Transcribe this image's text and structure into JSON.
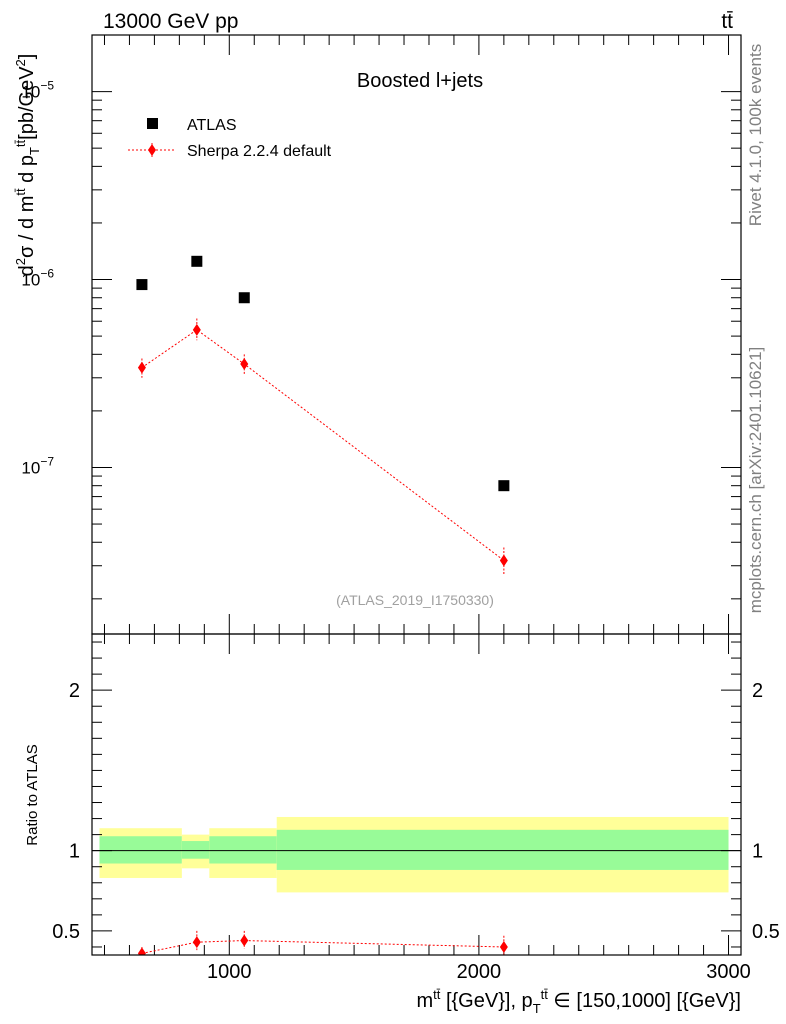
{
  "header": {
    "energy_label": "13000 GeV pp",
    "process_label": "tt̄"
  },
  "side_labels": {
    "rivet": "Rivet 4.1.0,  100k events",
    "source": "mcplots.cern.ch [arXiv:2401.10621]"
  },
  "chart_data": [
    {
      "panel": "main",
      "type": "scatter",
      "title": "Boosted l+jets",
      "analysis_label": "(ATLAS_2019_I1750330)",
      "ylabel": "d²σ / d mᵗᵗ̄ d p_Tᵗᵗ̄ [pb/GeV²]",
      "yscale": "log",
      "xlim": [
        450,
        3050
      ],
      "ylim": [
        1.3e-08,
        2e-05
      ],
      "y_tick_labels": [
        {
          "value": 1e-07,
          "base": "10",
          "exp": "−7"
        },
        {
          "value": 1e-06,
          "base": "10",
          "exp": "−6"
        },
        {
          "value": 1e-05,
          "base": "10",
          "exp": "−5"
        }
      ],
      "series": [
        {
          "name": "ATLAS",
          "color": "#000000",
          "marker": "square",
          "x": [
            650,
            870,
            1060,
            2100
          ],
          "y": [
            9.4e-07,
            1.25e-06,
            8e-07,
            8e-08
          ]
        },
        {
          "name": "Sherpa 2.2.4 default",
          "color": "#ff0000",
          "marker": "diamond",
          "linestyle": "dotted",
          "x": [
            650,
            870,
            1060,
            2100
          ],
          "y": [
            3.4e-07,
            5.4e-07,
            3.55e-07,
            3.2e-08
          ],
          "yerr_low": [
            3e-07,
            4.75e-07,
            3.1e-07,
            2.7e-08
          ],
          "yerr_high": [
            3.8e-07,
            6.2e-07,
            4e-07,
            3.75e-08
          ]
        }
      ]
    },
    {
      "panel": "ratio",
      "type": "line",
      "ylabel": "Ratio to ATLAS",
      "xlabel": "mᵗᵗ̄ [{GeV}], p_Tᵗᵗ̄ ∈ [150,1000] [{GeV}]",
      "xlim": [
        450,
        3050
      ],
      "ylim": [
        0.35,
        2.35
      ],
      "x_tick_labels": [
        "1000",
        "2000",
        "3000"
      ],
      "y_tick_labels": [
        "0.5",
        "1",
        "2"
      ],
      "reference_line": 1,
      "uncertainty_bands": {
        "bin_edges": [
          480,
          810,
          920,
          1190,
          3000
        ],
        "inner_low": [
          0.92,
          0.95,
          0.92,
          0.88
        ],
        "inner_high": [
          1.09,
          1.06,
          1.09,
          1.13
        ],
        "outer_low": [
          0.83,
          0.89,
          0.83,
          0.74
        ],
        "outer_high": [
          1.14,
          1.1,
          1.14,
          1.21
        ],
        "inner_color": "#98fb98",
        "outer_color": "#ffff99"
      },
      "series": [
        {
          "name": "Sherpa 2.2.4 default",
          "color": "#ff0000",
          "marker": "diamond",
          "x": [
            650,
            870,
            1060,
            2100
          ],
          "y": [
            0.36,
            0.43,
            0.44,
            0.4
          ],
          "yerr_low": [
            0.33,
            0.38,
            0.39,
            0.34
          ],
          "yerr_high": [
            0.4,
            0.5,
            0.5,
            0.47
          ]
        }
      ]
    }
  ]
}
